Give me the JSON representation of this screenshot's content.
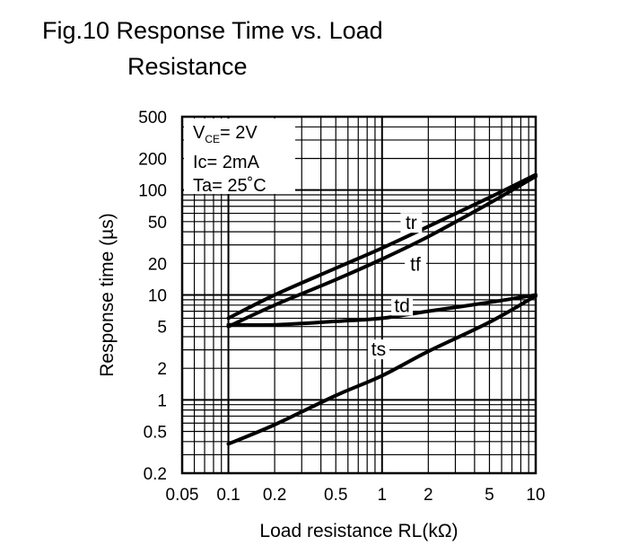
{
  "figure": {
    "title_line1": "Fig.10 Response Time vs. Load",
    "title_line2": "Resistance"
  },
  "conditions": {
    "vce_main": "V",
    "vce_sub": "CE",
    "vce_value": "= 2V",
    "ic": "Ic= 2mA",
    "ta": "Ta= 25˚C"
  },
  "chart_data": {
    "type": "line",
    "title": "Fig.10 Response Time vs. Load Resistance",
    "xlabel": "Load resistance RL(kΩ)",
    "ylabel": "Response time (µs)",
    "x_scale": "log",
    "y_scale": "log",
    "xlim": [
      0.05,
      10
    ],
    "ylim": [
      0.2,
      500
    ],
    "grid": true,
    "x_ticks": [
      {
        "value": 0.05,
        "label": "0.05"
      },
      {
        "value": 0.1,
        "label": "0.1"
      },
      {
        "value": 0.2,
        "label": "0.2"
      },
      {
        "value": 0.5,
        "label": "0.5"
      },
      {
        "value": 1,
        "label": "1"
      },
      {
        "value": 2,
        "label": "2"
      },
      {
        "value": 5,
        "label": "5"
      },
      {
        "value": 10,
        "label": "10"
      }
    ],
    "y_ticks": [
      {
        "value": 500,
        "label": "500"
      },
      {
        "value": 200,
        "label": "200"
      },
      {
        "value": 100,
        "label": "100"
      },
      {
        "value": 50,
        "label": "50"
      },
      {
        "value": 20,
        "label": "20"
      },
      {
        "value": 10,
        "label": "10"
      },
      {
        "value": 5,
        "label": "5"
      },
      {
        "value": 2,
        "label": "2"
      },
      {
        "value": 1,
        "label": "1"
      },
      {
        "value": 0.5,
        "label": "0.5"
      },
      {
        "value": 0.2,
        "label": "0.2"
      }
    ],
    "series": [
      {
        "name": "tr",
        "x": [
          0.1,
          0.2,
          0.5,
          1,
          2,
          5,
          10
        ],
        "values": [
          6,
          10,
          18,
          28,
          45,
          85,
          140
        ]
      },
      {
        "name": "tf",
        "x": [
          0.1,
          0.2,
          0.5,
          1,
          2,
          5,
          10
        ],
        "values": [
          5,
          8,
          14,
          22,
          36,
          75,
          135
        ]
      },
      {
        "name": "td",
        "x": [
          0.1,
          0.2,
          0.5,
          1,
          2,
          5,
          10
        ],
        "values": [
          5.2,
          5.2,
          5.6,
          6,
          7,
          8.5,
          10
        ]
      },
      {
        "name": "ts",
        "x": [
          0.1,
          0.2,
          0.5,
          1,
          2,
          5,
          10
        ],
        "values": [
          0.38,
          0.58,
          1.1,
          1.7,
          2.9,
          5.5,
          9.8
        ]
      }
    ],
    "series_labels": [
      {
        "name": "tr",
        "x": 1.55,
        "y": 45
      },
      {
        "name": "tf",
        "x": 1.65,
        "y": 18
      },
      {
        "name": "td",
        "x": 1.35,
        "y": 7.3
      },
      {
        "name": "ts",
        "x": 0.95,
        "y": 2.8
      }
    ]
  }
}
